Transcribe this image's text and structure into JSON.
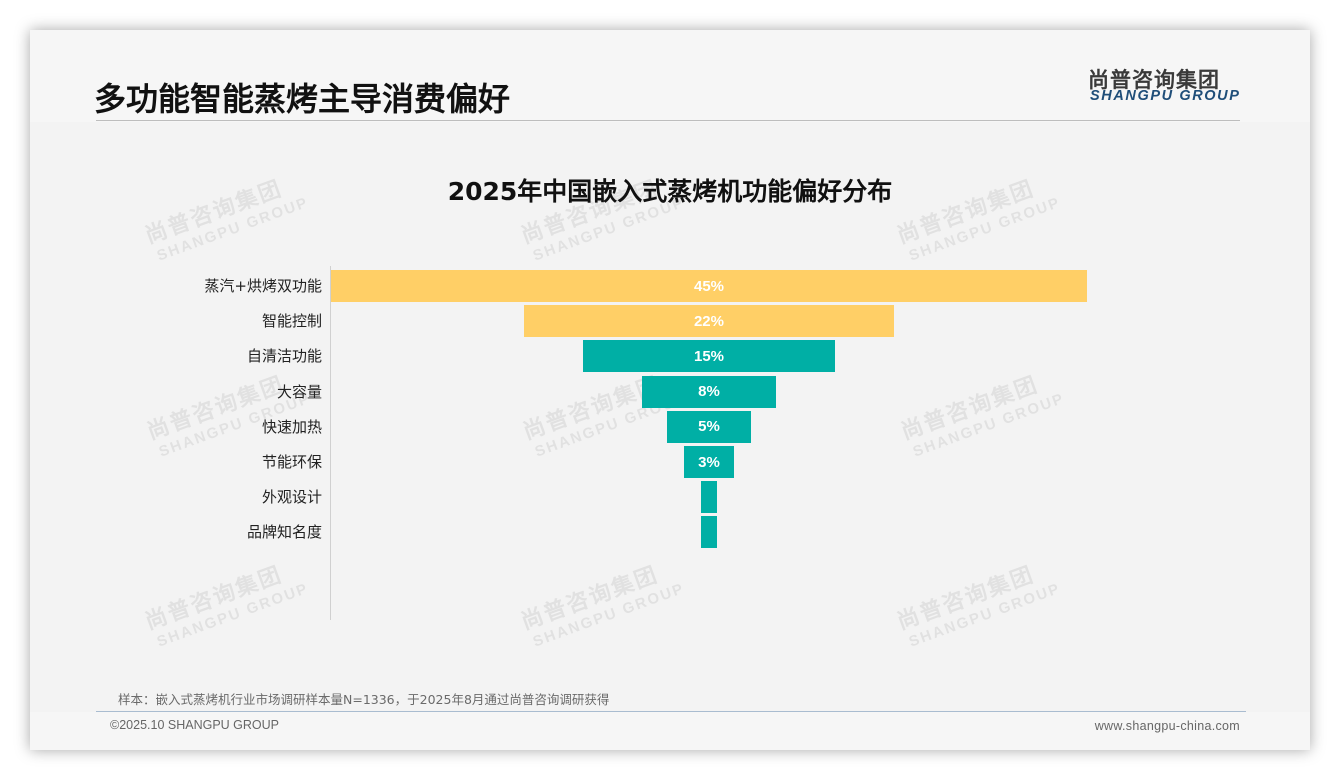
{
  "header": {
    "title": "多功能智能蒸烤主导消费偏好",
    "logo_cn": "尚普咨询集团",
    "logo_en": "SHANGPU GROUP"
  },
  "watermark": {
    "cn": "尚普咨询集团",
    "en": "SHANGPU GROUP"
  },
  "colors": {
    "highlight": "#FFCF66",
    "primary": "#00AFA5",
    "background": "#F3F3F3",
    "logo_en": "#1F4E79"
  },
  "chart_data": {
    "type": "bar",
    "subtype": "funnel (horizontal, centered)",
    "title": "2025年中国嵌入式蒸烤机功能偏好分布",
    "categories": [
      "蒸汽+烘烤双功能",
      "智能控制",
      "自清洁功能",
      "大容量",
      "快速加热",
      "节能环保",
      "外观设计",
      "品牌知名度"
    ],
    "values": [
      45,
      22,
      15,
      8,
      5,
      3,
      1,
      1
    ],
    "value_labels": [
      "45%",
      "22%",
      "15%",
      "8%",
      "5%",
      "3%",
      "",
      ""
    ],
    "bar_colors": [
      "#FFCF66",
      "#FFCF66",
      "#00AFA5",
      "#00AFA5",
      "#00AFA5",
      "#00AFA5",
      "#00AFA5",
      "#00AFA5"
    ],
    "unit": "%",
    "xlabel": "",
    "ylabel": "",
    "grid": false,
    "legend": null
  },
  "footer": {
    "note": "样本：嵌入式蒸烤机行业市场调研样本量N=1336，于2025年8月通过尚普咨询调研获得",
    "copyright": "©2025.10 SHANGPU GROUP",
    "website": "www.shangpu-china.com"
  }
}
